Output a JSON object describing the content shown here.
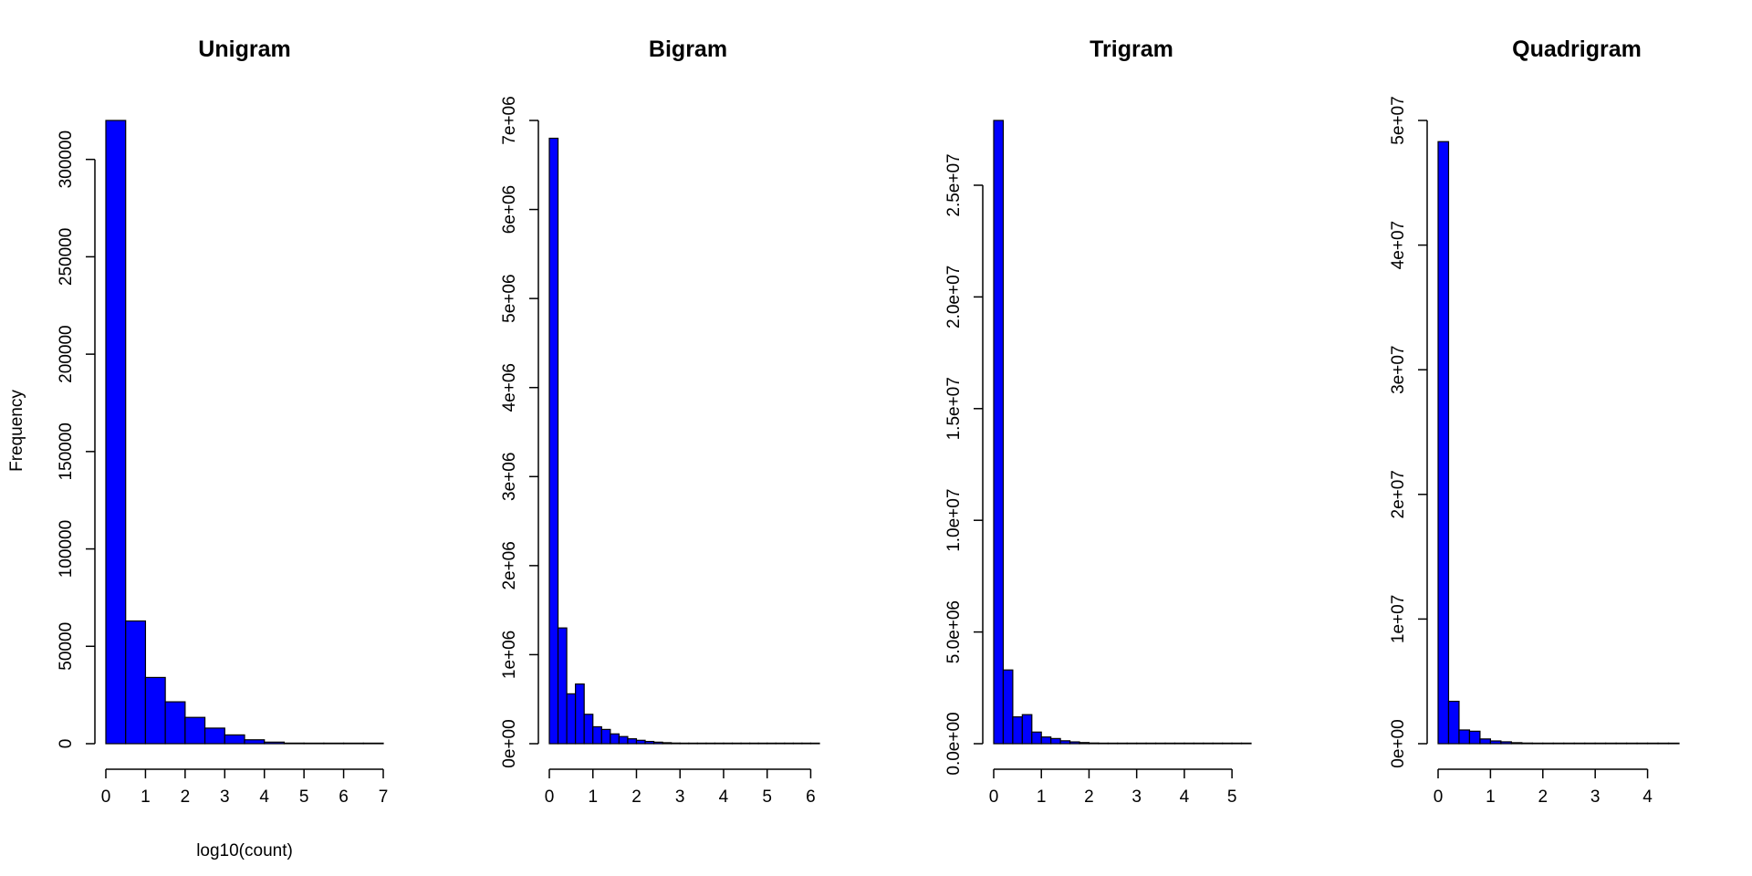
{
  "colors": {
    "bar_fill": "#0000ff",
    "bar_stroke": "#000000",
    "axis": "#000000"
  },
  "figure": {
    "ylabel": "Frequency",
    "xlabel": "log10(count)"
  },
  "chart_data": [
    {
      "type": "bar",
      "title": "Unigram",
      "xlabel": "log10(count)",
      "ylabel": "Frequency",
      "bin_width": 0.5,
      "bins_start": 0,
      "values": [
        320000,
        63000,
        34000,
        21500,
        13500,
        8000,
        4500,
        2000,
        800,
        300,
        100,
        40,
        10,
        5
      ],
      "xlim": [
        0,
        7
      ],
      "ylim": [
        0,
        320000
      ],
      "xticks": [
        0,
        1,
        2,
        3,
        4,
        5,
        6,
        7
      ],
      "xtick_labels": [
        "0",
        "1",
        "2",
        "3",
        "4",
        "5",
        "6",
        "7"
      ],
      "yticks": [
        0,
        50000,
        100000,
        150000,
        200000,
        250000,
        300000
      ],
      "ytick_labels": [
        "0",
        "50000",
        "100000",
        "150000",
        "200000",
        "250000",
        "300000"
      ],
      "grid": false,
      "legend": "none"
    },
    {
      "type": "bar",
      "title": "Bigram",
      "xlabel": "",
      "ylabel": "",
      "bin_width": 0.2,
      "bins_start": 0,
      "values": [
        6800000,
        1300000,
        560000,
        670000,
        330000,
        190000,
        160000,
        110000,
        80000,
        55000,
        38000,
        25000,
        17000,
        11000,
        7000,
        4500,
        3000,
        2000,
        1200,
        800,
        500,
        300,
        200,
        120,
        80,
        40,
        20,
        10,
        5,
        2,
        1
      ],
      "xlim": [
        0,
        6.2
      ],
      "ylim": [
        0,
        7000000
      ],
      "xticks": [
        0,
        1,
        2,
        3,
        4,
        5,
        6
      ],
      "xtick_labels": [
        "0",
        "1",
        "2",
        "3",
        "4",
        "5",
        "6"
      ],
      "yticks": [
        0,
        1000000,
        2000000,
        3000000,
        4000000,
        5000000,
        6000000,
        7000000
      ],
      "ytick_labels": [
        "0e+00",
        "1e+06",
        "2e+06",
        "3e+06",
        "4e+06",
        "5e+06",
        "6e+06",
        "7e+06"
      ],
      "grid": false,
      "legend": "none"
    },
    {
      "type": "bar",
      "title": "Trigram",
      "xlabel": "",
      "ylabel": "",
      "bin_width": 0.2,
      "bins_start": 0,
      "values": [
        27900000,
        3300000,
        1200000,
        1300000,
        520000,
        300000,
        230000,
        130000,
        80000,
        50000,
        30000,
        20000,
        12000,
        8000,
        5000,
        3000,
        2000,
        1200,
        800,
        500,
        300,
        200,
        100,
        60,
        30,
        20,
        10
      ],
      "xlim": [
        0,
        5.4
      ],
      "ylim": [
        0,
        27900000
      ],
      "xticks": [
        0,
        1,
        2,
        3,
        4,
        5
      ],
      "xtick_labels": [
        "0",
        "1",
        "2",
        "3",
        "4",
        "5"
      ],
      "yticks": [
        0,
        5000000,
        10000000,
        15000000,
        20000000,
        25000000
      ],
      "ytick_labels": [
        "0.0e+00",
        "5.0e+06",
        "1.0e+07",
        "1.5e+07",
        "2.0e+07",
        "2.5e+07"
      ],
      "grid": false,
      "legend": "none"
    },
    {
      "type": "bar",
      "title": "Quadrigram",
      "xlabel": "",
      "ylabel": "",
      "bin_width": 0.2,
      "bins_start": 0,
      "values": [
        48300000,
        3400000,
        1100000,
        1000000,
        380000,
        220000,
        150000,
        80000,
        50000,
        30000,
        18000,
        10000,
        6000,
        3500,
        2000,
        1200,
        700,
        400,
        250,
        150,
        80,
        40,
        20
      ],
      "xlim": [
        0,
        4.6
      ],
      "ylim": [
        0,
        50000000
      ],
      "xticks": [
        0,
        1,
        2,
        3,
        4
      ],
      "xtick_labels": [
        "0",
        "1",
        "2",
        "3",
        "4"
      ],
      "yticks": [
        0,
        10000000,
        20000000,
        30000000,
        40000000,
        50000000
      ],
      "ytick_labels": [
        "0e+00",
        "1e+07",
        "2e+07",
        "3e+07",
        "4e+07",
        "5e+07"
      ],
      "grid": false,
      "legend": "none"
    }
  ]
}
